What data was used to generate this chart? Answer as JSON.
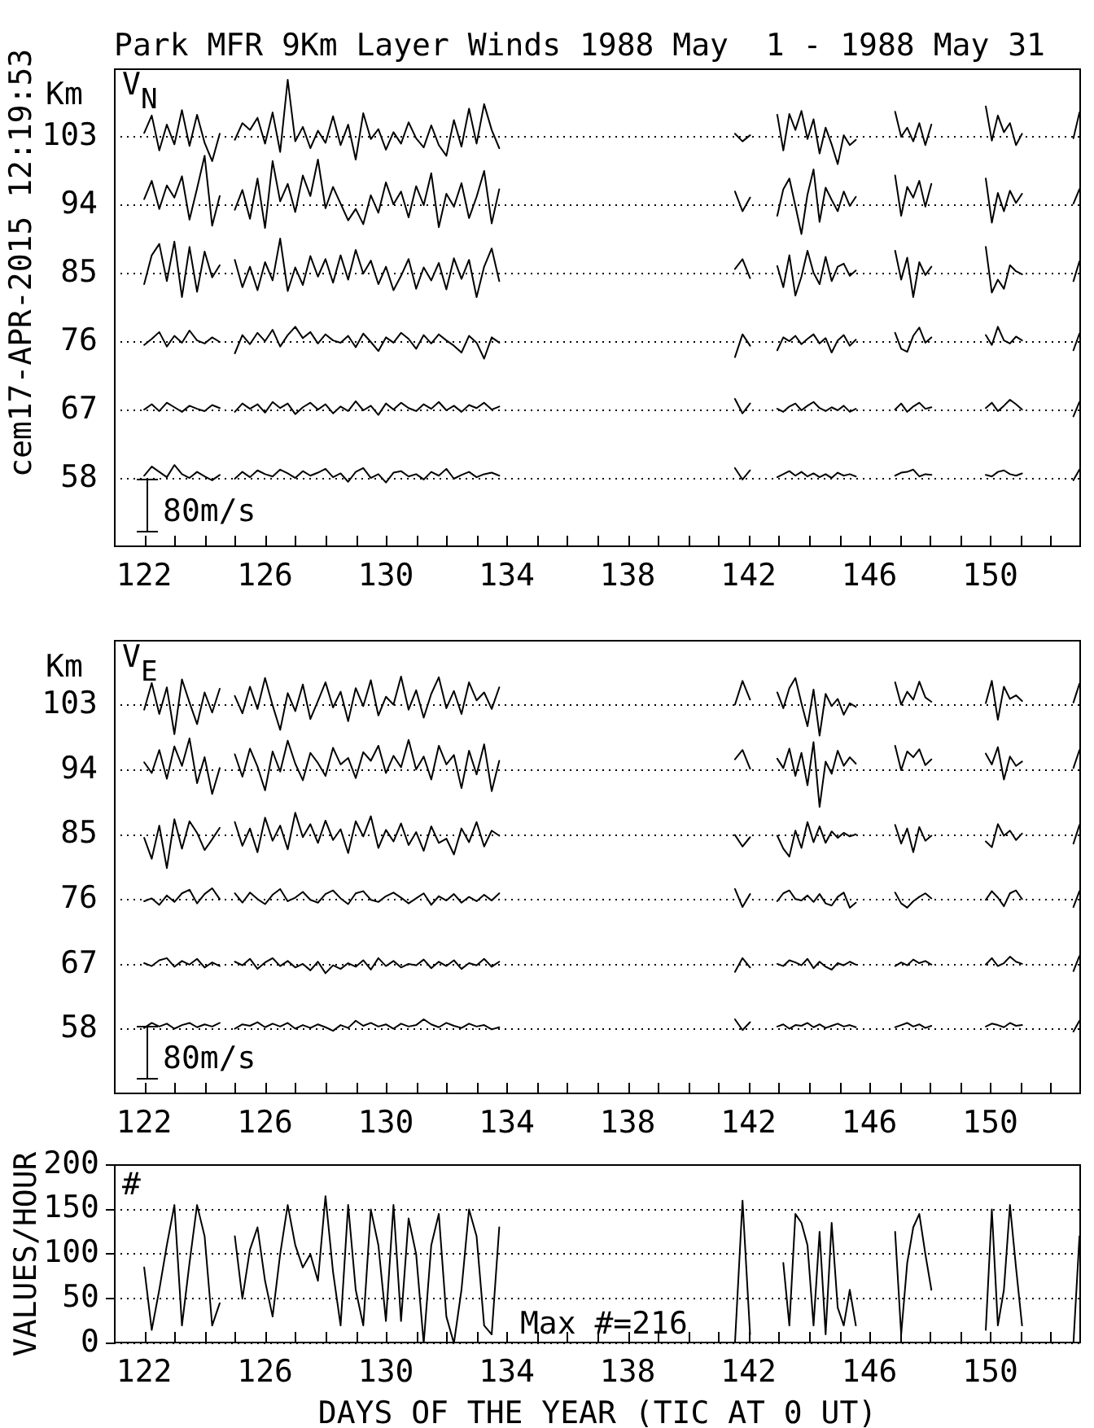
{
  "chart_data": [
    {
      "type": "line",
      "title": "Park MFR 9Km Layer Winds 1988 May  1 - 1988 May 31",
      "ylabel": "Km",
      "annotations": [
        "V$_{N}$",
        "80m/s",
        "cem17-APR-2015 12:19:53"
      ],
      "xlim": [
        121,
        153
      ],
      "xticks": [
        122,
        {
          "value": 123,
          "label": null
        },
        {
          "value": 124,
          "label": null
        },
        {
          "value": 125,
          "label": null
        },
        126,
        {
          "value": 127,
          "label": null
        },
        {
          "value": 128,
          "label": null
        },
        {
          "value": 129,
          "label": null
        },
        130,
        {
          "value": 131,
          "label": null
        },
        {
          "value": 132,
          "label": null
        },
        {
          "value": 133,
          "label": null
        },
        134,
        {
          "value": 135,
          "label": null
        },
        {
          "value": 136,
          "label": null
        },
        {
          "value": 137,
          "label": null
        },
        138,
        {
          "value": 139,
          "label": null
        },
        {
          "value": 140,
          "label": null
        },
        {
          "value": 141,
          "label": null
        },
        142,
        {
          "value": 143,
          "label": null
        },
        {
          "value": 144,
          "label": null
        },
        {
          "value": 145,
          "label": null
        },
        146,
        {
          "value": 147,
          "label": null
        },
        {
          "value": 148,
          "label": null
        },
        {
          "value": 149,
          "label": null
        },
        150,
        {
          "value": 151,
          "label": null
        },
        {
          "value": 152,
          "label": null
        }
      ],
      "ylim": [
        49,
        112
      ],
      "yticks": [
        58,
        67,
        76,
        85,
        94,
        103
      ],
      "grid": "y",
      "legend": false,
      "marker": "none",
      "line_style": "solid",
      "x": [
        122,
        122.25,
        122.5,
        122.75,
        123,
        123.25,
        123.5,
        123.75,
        124,
        124.25,
        124.5,
        124.75,
        125,
        125.25,
        125.5,
        125.75,
        126,
        126.25,
        126.5,
        126.75,
        127,
        127.25,
        127.5,
        127.75,
        128,
        128.25,
        128.5,
        128.75,
        129,
        129.25,
        129.5,
        129.75,
        130,
        130.25,
        130.5,
        130.75,
        131,
        131.25,
        131.5,
        131.75,
        132,
        132.25,
        132.5,
        132.75,
        133,
        133.25,
        133.5,
        133.75,
        137,
        141.55,
        141.8,
        142.05,
        142.5,
        142.95,
        143.15,
        143.35,
        143.55,
        143.75,
        143.95,
        144.15,
        144.35,
        144.55,
        144.75,
        144.95,
        145.15,
        145.35,
        145.55,
        146.3,
        146.85,
        147.05,
        147.25,
        147.45,
        147.65,
        147.85,
        148.05,
        149,
        149.85,
        150.05,
        150.25,
        150.45,
        150.65,
        150.85,
        151.05,
        152,
        152.75,
        152.95
      ],
      "series": [
        {
          "color": "#000000",
          "values": [
            103.5,
            105.8,
            101.2,
            104.6,
            102.0,
            106.5,
            101.8,
            105.9,
            102.2,
            99.8,
            103.4,
            null,
            102.6,
            104.8,
            103.9,
            105.5,
            102.1,
            106.2,
            101.0,
            110.5,
            102.4,
            104.3,
            101.5,
            103.8,
            102.2,
            105.7,
            101.9,
            104.6,
            100.0,
            106.1,
            102.7,
            104.0,
            101.3,
            103.6,
            102.1,
            104.9,
            102.8,
            101.6,
            104.5,
            101.9,
            100.5,
            105.2,
            101.7,
            106.7,
            102.1,
            107.3,
            103.9,
            101.5,
            null,
            103.4,
            102.4,
            103.2,
            null,
            105.9,
            101.2,
            106.0,
            103.9,
            106.4,
            102.7,
            105.3,
            100.8,
            104.2,
            102.0,
            99.4,
            103.2,
            101.9,
            102.6,
            null,
            106.3,
            103.0,
            104.2,
            102.4,
            104.8,
            101.9,
            104.6,
            null,
            107.0,
            102.5,
            105.8,
            103.6,
            104.8,
            101.9,
            103.4,
            null,
            102.8,
            106.2
          ]
        },
        {
          "color": "#000000",
          "values": [
            94.8,
            97.2,
            93.5,
            96.6,
            95.0,
            97.8,
            92.1,
            96.2,
            100.5,
            91.3,
            95.2,
            null,
            93.4,
            96.0,
            92.2,
            97.5,
            91.0,
            99.8,
            94.5,
            96.8,
            93.1,
            97.9,
            95.2,
            100.0,
            93.6,
            96.4,
            94.2,
            92.0,
            93.5,
            91.5,
            95.3,
            93.0,
            97.0,
            94.1,
            95.8,
            92.4,
            96.5,
            94.0,
            98.2,
            91.1,
            95.5,
            93.8,
            96.9,
            92.3,
            95.1,
            98.5,
            91.6,
            96.1,
            null,
            95.8,
            93.2,
            95.0,
            null,
            92.6,
            96.1,
            97.5,
            93.9,
            90.2,
            95.4,
            98.7,
            91.8,
            96.3,
            94.7,
            93.2,
            95.8,
            93.9,
            95.1,
            null,
            97.9,
            92.6,
            96.4,
            95.0,
            97.2,
            93.8,
            96.8,
            null,
            97.5,
            91.7,
            95.6,
            93.2,
            95.9,
            94.3,
            95.5,
            null,
            94.2,
            96.1
          ]
        },
        {
          "color": "#000000",
          "values": [
            83.6,
            87.4,
            88.9,
            84.0,
            89.2,
            81.9,
            88.5,
            82.6,
            87.9,
            84.5,
            86.1,
            null,
            86.8,
            83.2,
            85.9,
            82.8,
            86.5,
            84.1,
            89.6,
            82.7,
            85.8,
            83.5,
            87.3,
            84.6,
            86.9,
            83.8,
            87.4,
            84.2,
            88.1,
            85.0,
            86.7,
            83.6,
            85.9,
            82.8,
            84.7,
            86.9,
            83.0,
            85.8,
            84.1,
            86.4,
            82.9,
            87.0,
            84.3,
            86.8,
            81.9,
            85.9,
            88.3,
            84.0,
            null,
            85.6,
            86.9,
            84.4,
            null,
            86.0,
            83.2,
            87.4,
            82.1,
            84.6,
            88.0,
            85.1,
            83.6,
            87.2,
            84.0,
            85.9,
            86.3,
            84.7,
            85.4,
            null,
            88.0,
            84.2,
            87.1,
            81.9,
            86.5,
            84.8,
            85.9,
            null,
            88.5,
            82.5,
            84.2,
            83.0,
            86.1,
            85.3,
            84.9,
            null,
            84.0,
            86.6
          ]
        },
        {
          "color": "#000000",
          "values": [
            75.6,
            76.4,
            77.3,
            75.4,
            76.8,
            75.9,
            77.5,
            76.2,
            75.8,
            76.6,
            76.0,
            null,
            74.5,
            76.9,
            75.7,
            77.2,
            76.1,
            77.6,
            75.4,
            76.9,
            78.0,
            76.5,
            77.3,
            75.8,
            77.0,
            76.2,
            75.9,
            76.8,
            75.3,
            77.1,
            76.0,
            74.8,
            76.6,
            75.9,
            77.2,
            76.4,
            75.1,
            76.9,
            75.8,
            77.0,
            76.2,
            75.5,
            74.6,
            76.8,
            75.9,
            73.8,
            76.6,
            75.9,
            null,
            74.0,
            77.0,
            75.5,
            null,
            74.9,
            76.6,
            76.1,
            76.8,
            75.7,
            76.4,
            77.0,
            75.8,
            76.5,
            74.6,
            76.2,
            76.9,
            75.5,
            76.3,
            null,
            77.2,
            75.1,
            74.7,
            76.8,
            77.9,
            75.9,
            76.6,
            null,
            76.9,
            75.6,
            78.0,
            76.2,
            75.8,
            76.7,
            76.2,
            null,
            74.9,
            77.1
          ]
        },
        {
          "color": "#000000",
          "values": [
            67.1,
            67.8,
            66.9,
            68.0,
            67.4,
            66.8,
            67.6,
            67.2,
            66.9,
            67.7,
            67.3,
            null,
            66.8,
            67.9,
            67.2,
            67.8,
            66.7,
            68.1,
            67.3,
            67.9,
            66.5,
            67.4,
            68.0,
            67.1,
            67.8,
            66.6,
            67.5,
            66.9,
            68.2,
            67.0,
            67.6,
            66.4,
            67.9,
            67.1,
            68.0,
            67.3,
            66.9,
            67.8,
            67.2,
            68.1,
            67.0,
            67.6,
            66.8,
            67.7,
            67.3,
            68.0,
            67.1,
            67.5,
            null,
            68.5,
            66.6,
            67.9,
            null,
            67.2,
            66.8,
            67.5,
            67.9,
            67.0,
            67.6,
            68.1,
            67.3,
            66.9,
            67.4,
            67.0,
            67.6,
            66.8,
            67.2,
            null,
            67.1,
            67.9,
            66.8,
            67.5,
            68.0,
            67.2,
            67.4,
            null,
            67.3,
            68.0,
            66.9,
            67.6,
            68.4,
            67.8,
            67.1,
            null,
            66.2,
            68.1
          ]
        },
        {
          "color": "#000000",
          "values": [
            58.4,
            59.6,
            58.9,
            58.2,
            59.8,
            58.6,
            58.1,
            58.9,
            58.3,
            57.8,
            58.5,
            null,
            58.0,
            58.9,
            58.2,
            59.1,
            58.6,
            58.3,
            59.2,
            58.7,
            58.1,
            59.0,
            58.4,
            58.8,
            59.3,
            58.2,
            58.7,
            57.6,
            58.9,
            59.4,
            58.1,
            58.6,
            57.5,
            58.8,
            59.0,
            58.3,
            58.6,
            57.9,
            58.9,
            58.4,
            59.3,
            58.0,
            58.5,
            58.9,
            58.2,
            58.6,
            58.8,
            58.4,
            null,
            59.4,
            57.9,
            59.1,
            null,
            58.2,
            58.6,
            59.0,
            58.4,
            58.9,
            58.3,
            58.7,
            58.2,
            58.6,
            58.1,
            58.8,
            58.4,
            58.6,
            58.3,
            null,
            58.4,
            58.8,
            58.9,
            59.2,
            58.3,
            58.6,
            58.5,
            null,
            58.5,
            58.3,
            58.9,
            59.1,
            58.6,
            58.4,
            58.7,
            null,
            57.8,
            59.2
          ]
        }
      ]
    },
    {
      "type": "line",
      "ylabel": "Km",
      "annotations": [
        "V$_{E}$",
        "80m/s"
      ],
      "xlim": [
        121,
        153
      ],
      "xticks": [
        122,
        {
          "value": 123,
          "label": null
        },
        {
          "value": 124,
          "label": null
        },
        {
          "value": 125,
          "label": null
        },
        126,
        {
          "value": 127,
          "label": null
        },
        {
          "value": 128,
          "label": null
        },
        {
          "value": 129,
          "label": null
        },
        130,
        {
          "value": 131,
          "label": null
        },
        {
          "value": 132,
          "label": null
        },
        {
          "value": 133,
          "label": null
        },
        134,
        {
          "value": 135,
          "label": null
        },
        {
          "value": 136,
          "label": null
        },
        {
          "value": 137,
          "label": null
        },
        138,
        {
          "value": 139,
          "label": null
        },
        {
          "value": 140,
          "label": null
        },
        {
          "value": 141,
          "label": null
        },
        142,
        {
          "value": 143,
          "label": null
        },
        {
          "value": 144,
          "label": null
        },
        {
          "value": 145,
          "label": null
        },
        146,
        {
          "value": 147,
          "label": null
        },
        {
          "value": 148,
          "label": null
        },
        {
          "value": 149,
          "label": null
        },
        150,
        {
          "value": 151,
          "label": null
        },
        {
          "value": 152,
          "label": null
        }
      ],
      "ylim": [
        49,
        112
      ],
      "yticks": [
        58,
        67,
        76,
        85,
        94,
        103
      ],
      "grid": "y",
      "legend": false,
      "marker": "none",
      "line_style": "solid",
      "x": [
        122,
        122.25,
        122.5,
        122.75,
        123,
        123.25,
        123.5,
        123.75,
        124,
        124.25,
        124.5,
        124.75,
        125,
        125.25,
        125.5,
        125.75,
        126,
        126.25,
        126.5,
        126.75,
        127,
        127.25,
        127.5,
        127.75,
        128,
        128.25,
        128.5,
        128.75,
        129,
        129.25,
        129.5,
        129.75,
        130,
        130.25,
        130.5,
        130.75,
        131,
        131.25,
        131.5,
        131.75,
        132,
        132.25,
        132.5,
        132.75,
        133,
        133.25,
        133.5,
        133.75,
        137,
        141.55,
        141.8,
        142.05,
        142.5,
        142.95,
        143.15,
        143.35,
        143.55,
        143.75,
        143.95,
        144.15,
        144.35,
        144.55,
        144.75,
        144.95,
        145.15,
        145.35,
        145.55,
        146.3,
        146.85,
        147.05,
        147.25,
        147.45,
        147.65,
        147.85,
        148.05,
        149,
        149.85,
        150.05,
        150.25,
        150.45,
        150.65,
        150.85,
        151.05,
        152,
        152.75,
        152.95
      ],
      "series": [
        {
          "color": "#000000",
          "values": [
            102.4,
            106.1,
            101.8,
            105.5,
            99.0,
            106.6,
            103.4,
            100.4,
            104.8,
            102.0,
            105.3,
            null,
            104.3,
            101.9,
            105.6,
            102.5,
            106.8,
            103.0,
            99.6,
            104.7,
            102.2,
            105.9,
            101.1,
            103.6,
            106.2,
            102.7,
            104.9,
            100.8,
            105.4,
            102.9,
            106.5,
            101.6,
            104.2,
            103.1,
            107.0,
            102.4,
            105.1,
            101.3,
            104.6,
            106.9,
            102.6,
            105.0,
            101.8,
            106.2,
            103.7,
            104.8,
            102.5,
            105.5,
            null,
            103.1,
            106.4,
            103.8,
            null,
            104.8,
            102.6,
            105.4,
            106.8,
            103.3,
            100.1,
            105.2,
            98.8,
            104.6,
            102.9,
            103.9,
            101.7,
            103.3,
            102.8,
            null,
            106.2,
            103.1,
            104.9,
            103.8,
            106.3,
            104.1,
            103.5,
            null,
            103.3,
            106.4,
            101.0,
            105.6,
            103.9,
            104.4,
            103.6,
            null,
            103.4,
            106.0
          ]
        },
        {
          "color": "#000000",
          "values": [
            95.1,
            93.6,
            96.8,
            92.8,
            97.3,
            94.6,
            98.4,
            92.2,
            95.8,
            90.7,
            94.3,
            null,
            96.2,
            93.1,
            97.0,
            94.5,
            91.2,
            96.6,
            93.8,
            98.1,
            94.9,
            92.6,
            96.4,
            95.0,
            93.2,
            97.1,
            94.8,
            95.7,
            92.9,
            96.5,
            95.3,
            97.4,
            93.6,
            96.0,
            94.4,
            98.2,
            94.1,
            95.9,
            92.7,
            97.4,
            94.8,
            96.1,
            91.5,
            96.7,
            93.4,
            97.6,
            91.1,
            95.3,
            null,
            95.5,
            96.8,
            94.2,
            null,
            95.6,
            94.3,
            97.0,
            93.2,
            96.4,
            91.9,
            97.9,
            88.9,
            95.2,
            93.5,
            96.7,
            94.6,
            95.8,
            94.9,
            null,
            97.4,
            94.0,
            96.6,
            95.8,
            96.9,
            94.7,
            95.5,
            null,
            96.3,
            94.8,
            97.2,
            92.7,
            95.9,
            94.6,
            95.2,
            null,
            94.3,
            96.8
          ]
        },
        {
          "color": "#000000",
          "values": [
            84.6,
            81.7,
            86.3,
            80.4,
            87.2,
            83.1,
            86.9,
            85.3,
            82.9,
            84.4,
            86.0,
            null,
            86.8,
            83.5,
            85.9,
            82.6,
            87.4,
            84.2,
            86.3,
            83.0,
            88.1,
            84.7,
            86.5,
            83.9,
            87.0,
            84.3,
            85.8,
            82.5,
            86.9,
            84.8,
            87.6,
            83.2,
            85.7,
            84.1,
            86.6,
            83.6,
            85.4,
            82.8,
            86.2,
            83.9,
            84.5,
            82.3,
            85.9,
            84.0,
            86.8,
            83.4,
            85.6,
            84.9,
            null,
            85.0,
            83.4,
            84.7,
            null,
            84.9,
            83.1,
            82.0,
            85.6,
            83.2,
            86.8,
            84.0,
            86.2,
            83.9,
            85.5,
            84.6,
            85.3,
            84.8,
            85.1,
            null,
            86.4,
            83.8,
            85.9,
            82.6,
            86.1,
            84.2,
            84.9,
            null,
            84.1,
            83.3,
            86.5,
            84.9,
            85.6,
            84.3,
            85.2,
            null,
            83.8,
            86.4
          ]
        },
        {
          "color": "#000000",
          "values": [
            75.8,
            76.2,
            75.3,
            76.6,
            75.7,
            76.9,
            77.4,
            75.5,
            76.8,
            77.6,
            76.1,
            null,
            76.9,
            75.6,
            77.0,
            76.1,
            75.4,
            76.7,
            77.5,
            75.8,
            76.3,
            77.1,
            76.0,
            75.6,
            76.8,
            77.3,
            76.2,
            75.4,
            76.9,
            77.2,
            76.0,
            75.7,
            76.5,
            77.0,
            76.3,
            75.5,
            76.2,
            76.9,
            75.3,
            76.5,
            75.9,
            76.8,
            75.6,
            76.4,
            75.8,
            76.7,
            75.9,
            76.9,
            null,
            77.5,
            75.0,
            76.8,
            null,
            75.8,
            76.9,
            77.3,
            76.1,
            75.9,
            76.6,
            75.7,
            76.8,
            75.5,
            75.2,
            76.4,
            77.0,
            74.9,
            75.6,
            null,
            77.0,
            75.5,
            74.9,
            75.8,
            76.4,
            76.9,
            76.2,
            null,
            76.0,
            77.2,
            76.3,
            75.1,
            76.9,
            77.3,
            76.1,
            null,
            75.0,
            77.2
          ]
        },
        {
          "color": "#000000",
          "values": [
            67.2,
            66.8,
            67.6,
            67.9,
            66.7,
            67.5,
            67.0,
            67.8,
            66.6,
            67.3,
            66.8,
            null,
            67.4,
            66.9,
            67.8,
            66.4,
            67.3,
            67.9,
            66.8,
            67.5,
            66.6,
            67.1,
            66.2,
            67.4,
            65.8,
            66.9,
            66.4,
            67.2,
            66.7,
            67.6,
            66.3,
            67.9,
            66.8,
            67.5,
            66.6,
            67.1,
            66.9,
            67.7,
            66.5,
            67.4,
            66.8,
            67.6,
            66.4,
            67.2,
            66.9,
            67.8,
            66.7,
            67.4,
            null,
            66.0,
            67.9,
            66.6,
            null,
            67.1,
            66.8,
            67.6,
            67.3,
            66.9,
            67.8,
            66.5,
            67.4,
            66.7,
            66.3,
            67.2,
            66.9,
            67.4,
            67.0,
            null,
            66.8,
            67.3,
            66.9,
            67.7,
            67.2,
            67.5,
            67.0,
            null,
            67.0,
            67.9,
            66.8,
            67.2,
            68.1,
            67.4,
            67.1,
            null,
            66.1,
            68.2
          ]
        },
        {
          "color": "#000000",
          "values": [
            58.2,
            58.9,
            58.4,
            58.8,
            58.1,
            58.6,
            58.9,
            58.3,
            58.7,
            58.4,
            58.9,
            null,
            58.1,
            58.7,
            58.5,
            59.0,
            58.3,
            58.8,
            58.4,
            58.9,
            58.1,
            58.6,
            58.2,
            58.7,
            58.3,
            57.8,
            58.6,
            58.2,
            59.2,
            58.5,
            58.9,
            58.4,
            58.7,
            58.1,
            58.8,
            58.4,
            58.6,
            59.4,
            58.7,
            58.3,
            58.9,
            58.5,
            58.2,
            58.8,
            58.4,
            58.6,
            58.0,
            58.3,
            null,
            59.4,
            57.9,
            59.0,
            null,
            58.4,
            58.7,
            58.1,
            58.6,
            58.5,
            58.9,
            58.3,
            58.7,
            58.2,
            58.5,
            58.8,
            58.4,
            58.6,
            58.3,
            null,
            58.3,
            58.6,
            58.9,
            58.4,
            58.7,
            58.2,
            58.5,
            null,
            58.4,
            58.8,
            58.6,
            58.3,
            58.9,
            58.5,
            58.6,
            null,
            57.7,
            59.2
          ]
        }
      ]
    },
    {
      "type": "line",
      "xlabel": "DAYS OF THE YEAR (TIC AT 0 UT)",
      "ylabel": "VALUES/HOUR",
      "annotations": [
        "#",
        "Max #=216"
      ],
      "xlim": [
        121,
        153
      ],
      "xticks": [
        122,
        {
          "value": 123,
          "label": null
        },
        {
          "value": 124,
          "label": null
        },
        {
          "value": 125,
          "label": null
        },
        126,
        {
          "value": 127,
          "label": null
        },
        {
          "value": 128,
          "label": null
        },
        {
          "value": 129,
          "label": null
        },
        130,
        {
          "value": 131,
          "label": null
        },
        {
          "value": 132,
          "label": null
        },
        {
          "value": 133,
          "label": null
        },
        134,
        {
          "value": 135,
          "label": null
        },
        {
          "value": 136,
          "label": null
        },
        {
          "value": 137,
          "label": null
        },
        138,
        {
          "value": 139,
          "label": null
        },
        {
          "value": 140,
          "label": null
        },
        {
          "value": 141,
          "label": null
        },
        142,
        {
          "value": 143,
          "label": null
        },
        {
          "value": 144,
          "label": null
        },
        {
          "value": 145,
          "label": null
        },
        146,
        {
          "value": 147,
          "label": null
        },
        {
          "value": 148,
          "label": null
        },
        {
          "value": 149,
          "label": null
        },
        150,
        {
          "value": 151,
          "label": null
        },
        {
          "value": 152,
          "label": null
        }
      ],
      "ylim": [
        0,
        200
      ],
      "yticks": [
        0,
        50,
        100,
        150,
        200
      ],
      "grid": "y",
      "legend": false,
      "marker": "none",
      "line_style": "solid",
      "x": [
        122,
        122.25,
        122.5,
        122.75,
        123,
        123.25,
        123.5,
        123.75,
        124,
        124.25,
        124.5,
        124.75,
        125,
        125.25,
        125.5,
        125.75,
        126,
        126.25,
        126.5,
        126.75,
        127,
        127.25,
        127.5,
        127.75,
        128,
        128.25,
        128.5,
        128.75,
        129,
        129.25,
        129.5,
        129.75,
        130,
        130.25,
        130.5,
        130.75,
        131,
        131.25,
        131.5,
        131.75,
        132,
        132.25,
        132.5,
        132.75,
        133,
        133.25,
        133.5,
        133.75,
        137,
        141.55,
        141.8,
        142.05,
        142.5,
        142.95,
        143.15,
        143.35,
        143.55,
        143.75,
        143.95,
        144.15,
        144.35,
        144.55,
        144.75,
        144.95,
        145.15,
        145.35,
        145.55,
        146.3,
        146.85,
        147.05,
        147.25,
        147.45,
        147.65,
        147.85,
        148.05,
        149,
        149.85,
        150.05,
        150.25,
        150.45,
        150.65,
        150.85,
        151.05,
        152,
        152.75,
        152.95
      ],
      "series": [
        {
          "color": "#000000",
          "values": [
            85,
            15,
            60,
            110,
            155,
            20,
            90,
            155,
            120,
            20,
            45,
            null,
            120,
            50,
            105,
            130,
            70,
            30,
            100,
            155,
            110,
            85,
            100,
            70,
            165,
            80,
            20,
            155,
            60,
            20,
            150,
            110,
            25,
            155,
            25,
            140,
            100,
            0,
            110,
            145,
            30,
            0,
            60,
            150,
            120,
            20,
            10,
            130,
            null,
            0,
            160,
            10,
            null,
            null,
            90,
            20,
            145,
            135,
            110,
            20,
            125,
            10,
            135,
            40,
            20,
            60,
            20,
            null,
            125,
            10,
            90,
            130,
            145,
            100,
            60,
            null,
            15,
            150,
            20,
            60,
            155,
            85,
            20,
            null,
            0,
            120
          ]
        }
      ]
    }
  ]
}
